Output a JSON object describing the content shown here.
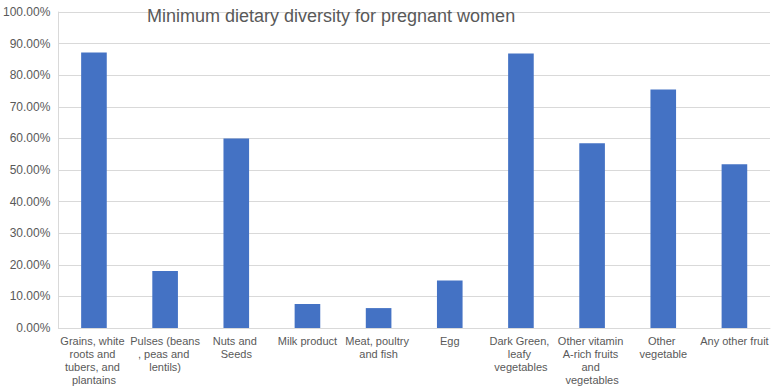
{
  "chart_data": {
    "type": "bar",
    "title": "Minimum dietary diversity for pregnant women",
    "categories": [
      "Grains, white roots and tubers, and plantains",
      "Pulses (beans, peas and lentils)",
      "Nuts and Seeds",
      "Milk product",
      "Meat, poultry and fish",
      "Egg",
      "Dark Green, leafy vegetables",
      "Other vitamin A-rich fruits and vegetables",
      "Other vegetable",
      "Any other fruit"
    ],
    "values": [
      87.2,
      18.0,
      60.0,
      7.6,
      6.3,
      15.0,
      86.9,
      58.5,
      75.5,
      51.8
    ],
    "color": "#4472c4",
    "ylim": [
      0,
      100
    ],
    "yticks": [
      {
        "value": 0,
        "label": "0.00%"
      },
      {
        "value": 10,
        "label": "10.00%"
      },
      {
        "value": 20,
        "label": "20.00%"
      },
      {
        "value": 30,
        "label": "30.00%"
      },
      {
        "value": 40,
        "label": "40.00%"
      },
      {
        "value": 50,
        "label": "50.00%"
      },
      {
        "value": 60,
        "label": "60.00%"
      },
      {
        "value": 70,
        "label": "70.00%"
      },
      {
        "value": 80,
        "label": "80.00%"
      },
      {
        "value": 90,
        "label": "90.00%"
      },
      {
        "value": 100,
        "label": "100.00%"
      }
    ],
    "grid": true
  }
}
